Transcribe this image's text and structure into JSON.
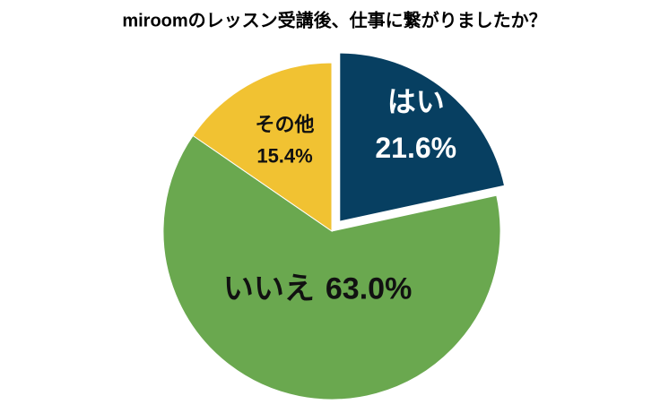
{
  "chart_data": {
    "type": "pie",
    "title": "miroomのレッスン受講後、仕事に繋がりましたか？",
    "categories": [
      "はい",
      "いいえ",
      "その他"
    ],
    "values": [
      21.6,
      63.0,
      15.4
    ],
    "value_labels": [
      "21.6%",
      "63.0%",
      "15.4%"
    ],
    "colors": [
      "#073f61",
      "#6aa84f",
      "#f1c232"
    ],
    "explode": [
      true,
      false,
      false
    ]
  }
}
